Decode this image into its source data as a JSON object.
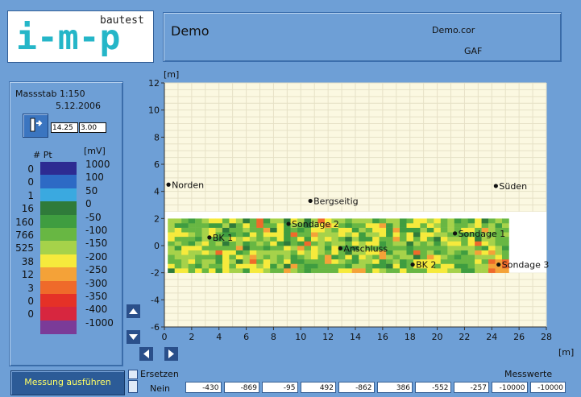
{
  "logo": {
    "text": "i-m-p",
    "sub": "bautest"
  },
  "header": {
    "title": "Demo",
    "file1": "Demo.cor",
    "file2": "GAF"
  },
  "left_panel": {
    "scale": "Massstab 1:150",
    "date": "5.12.2006",
    "field1": "14.25",
    "field2": "3.00",
    "col_pt": "# Pt",
    "col_mv": "[mV]",
    "legend": [
      {
        "count": "0",
        "mv": "1000",
        "color": "#2d2b92"
      },
      {
        "count": "0",
        "mv": "100",
        "color": "#2d6ac5"
      },
      {
        "count": "1",
        "mv": "50",
        "color": "#3aa9e0"
      },
      {
        "count": "16",
        "mv": "0",
        "color": "#2f7b3a"
      },
      {
        "count": "160",
        "mv": "-50",
        "color": "#3f9d40"
      },
      {
        "count": "766",
        "mv": "-100",
        "color": "#68b743"
      },
      {
        "count": "525",
        "mv": "-150",
        "color": "#a6d24a"
      },
      {
        "count": "38",
        "mv": "-200",
        "color": "#f6ea3c"
      },
      {
        "count": "12",
        "mv": "-250",
        "color": "#f4a238"
      },
      {
        "count": "3",
        "mv": "-300",
        "color": "#ef6a2a"
      },
      {
        "count": "0",
        "mv": "-350",
        "color": "#e53127"
      },
      {
        "count": "0",
        "mv": "-400",
        "color": "#d7263f"
      },
      {
        "count": "",
        "mv": "-1000",
        "color": "#7b3b98"
      }
    ]
  },
  "chart_data": {
    "type": "heatmap",
    "y_unit": "[m]",
    "x_unit": "[m]",
    "xlim": [
      0,
      28
    ],
    "ylim": [
      -6,
      12
    ],
    "x_ticks": [
      "0",
      "2",
      "4",
      "6",
      "8",
      "10",
      "12",
      "14",
      "16",
      "18",
      "20",
      "22",
      "24",
      "26",
      "28"
    ],
    "y_ticks": [
      "12",
      "10",
      "8",
      "6",
      "4",
      "2",
      "0",
      "-2",
      "-4",
      "-6"
    ],
    "heat_extent": {
      "x": [
        0,
        25
      ],
      "y": [
        -2,
        2
      ]
    },
    "labels": [
      {
        "text": "Norden",
        "x": 0.3,
        "y": 4.5
      },
      {
        "text": "Bergseitig",
        "x": 10.7,
        "y": 3.3
      },
      {
        "text": "Süden",
        "x": 24.3,
        "y": 4.4
      },
      {
        "text": "Sondage 2",
        "x": 9.1,
        "y": 1.6
      },
      {
        "text": "BK 1",
        "x": 3.3,
        "y": 0.6
      },
      {
        "text": "Anschluss",
        "x": 12.9,
        "y": -0.2
      },
      {
        "text": "Sondage 1",
        "x": 21.3,
        "y": 0.9
      },
      {
        "text": "BK 2",
        "x": 18.2,
        "y": -1.4
      },
      {
        "text": "Sondage 3",
        "x": 24.5,
        "y": -1.4
      }
    ]
  },
  "bottom": {
    "run_button": "Messung ausführen",
    "replace_label": "Ersetzen",
    "replace_value": "Nein",
    "mw_label": "Messwerte",
    "values": [
      "-430",
      "-869",
      "-95",
      "492",
      "-862",
      "386",
      "-552",
      "-257",
      "-10000",
      "-10000"
    ]
  }
}
